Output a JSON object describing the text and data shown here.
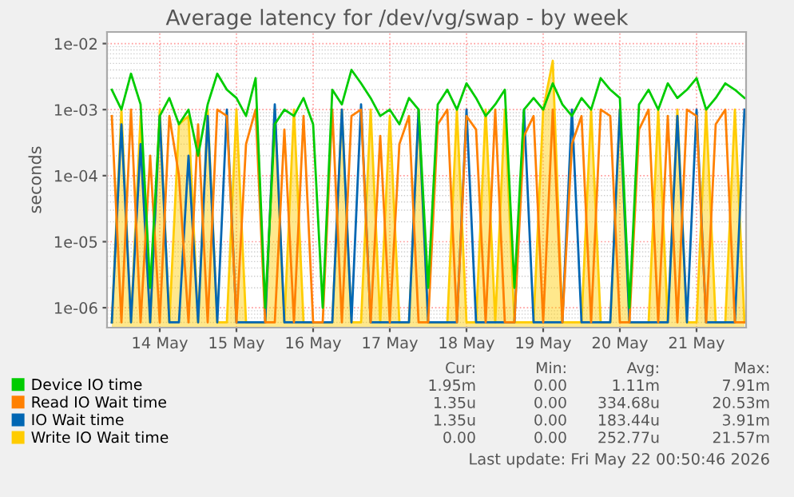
{
  "chart_data": {
    "type": "line",
    "title": "Average latency for /dev/vg/swap - by week",
    "ylabel": "seconds",
    "x": [
      "2026-05-13T09:00",
      "2026-05-13T12:00",
      "2026-05-13T15:00",
      "2026-05-13T18:00",
      "2026-05-13T21:00",
      "2026-05-14T00:00",
      "2026-05-14T03:00",
      "2026-05-14T06:00",
      "2026-05-14T09:00",
      "2026-05-14T12:00",
      "2026-05-14T15:00",
      "2026-05-14T18:00",
      "2026-05-14T21:00",
      "2026-05-15T00:00",
      "2026-05-15T03:00",
      "2026-05-15T06:00",
      "2026-05-15T09:00",
      "2026-05-15T12:00",
      "2026-05-15T15:00",
      "2026-05-15T18:00",
      "2026-05-15T21:00",
      "2026-05-16T00:00",
      "2026-05-16T03:00",
      "2026-05-16T06:00",
      "2026-05-16T09:00",
      "2026-05-16T12:00",
      "2026-05-16T15:00",
      "2026-05-16T18:00",
      "2026-05-16T21:00",
      "2026-05-17T00:00",
      "2026-05-17T03:00",
      "2026-05-17T06:00",
      "2026-05-17T09:00",
      "2026-05-17T12:00",
      "2026-05-17T15:00",
      "2026-05-17T18:00",
      "2026-05-17T21:00",
      "2026-05-18T00:00",
      "2026-05-18T03:00",
      "2026-05-18T06:00",
      "2026-05-18T09:00",
      "2026-05-18T12:00",
      "2026-05-18T15:00",
      "2026-05-18T18:00",
      "2026-05-18T21:00",
      "2026-05-19T00:00",
      "2026-05-19T03:00",
      "2026-05-19T06:00",
      "2026-05-19T09:00",
      "2026-05-19T12:00",
      "2026-05-19T15:00",
      "2026-05-19T18:00",
      "2026-05-19T21:00",
      "2026-05-20T00:00",
      "2026-05-20T03:00",
      "2026-05-20T06:00",
      "2026-05-20T09:00",
      "2026-05-20T12:00",
      "2026-05-20T15:00",
      "2026-05-20T18:00",
      "2026-05-20T21:00",
      "2026-05-21T00:00",
      "2026-05-21T03:00",
      "2026-05-21T06:00",
      "2026-05-21T09:00",
      "2026-05-21T12:00",
      "2026-05-21T15:00"
    ],
    "series": [
      {
        "name": "Write IO Wait time",
        "type": "area",
        "color": "#ffcc00",
        "values": [
          6e-07,
          0.001,
          6e-07,
          0.0008,
          6e-07,
          0.001,
          6e-07,
          0.0006,
          0.0008,
          6e-07,
          0.001,
          6e-07,
          6e-07,
          0.001,
          6e-07,
          6e-07,
          6e-07,
          0.001,
          6e-07,
          0.001,
          6e-07,
          6e-07,
          6e-07,
          6e-07,
          0.001,
          6e-07,
          6e-07,
          0.001,
          6e-07,
          0.0008,
          6e-07,
          6e-07,
          0.001,
          6e-07,
          6e-07,
          6e-07,
          0.001,
          6e-07,
          6e-07,
          0.001,
          6e-07,
          0.001,
          6e-07,
          6e-07,
          6e-07,
          0.001,
          0.0055,
          6e-07,
          6e-07,
          6e-07,
          0.001,
          6e-07,
          6e-07,
          0.001,
          6e-07,
          6e-07,
          6e-07,
          0.001,
          6e-07,
          0.001,
          6e-07,
          6e-07,
          0.001,
          6e-07,
          6e-07,
          0.001,
          6e-07
        ]
      },
      {
        "name": "IO Wait time",
        "color": "#0066b3",
        "values": [
          6e-07,
          0.0006,
          6e-07,
          0.0003,
          6e-07,
          0.0008,
          6e-07,
          6e-07,
          0.0002,
          6e-07,
          0.0008,
          6e-07,
          0.001,
          6e-07,
          6e-07,
          6e-07,
          6e-07,
          0.0012,
          6e-07,
          6e-07,
          6e-07,
          6e-07,
          6e-07,
          6e-07,
          0.001,
          6e-07,
          0.0012,
          6e-07,
          6e-07,
          6e-07,
          6e-07,
          6e-07,
          0.001,
          6e-07,
          6e-07,
          6e-07,
          6e-07,
          0.001,
          6e-07,
          6e-07,
          6e-07,
          6e-07,
          6e-07,
          0.001,
          6e-07,
          6e-07,
          6e-07,
          6e-07,
          0.001,
          6e-07,
          6e-07,
          6e-07,
          6e-07,
          0.001,
          6e-07,
          6e-07,
          6e-07,
          6e-07,
          6e-07,
          0.0008,
          6e-07,
          0.001,
          6e-07,
          6e-07,
          6e-07,
          6e-07,
          0.001
        ]
      },
      {
        "name": "Read IO Wait time",
        "color": "#ff8000",
        "values": [
          0.0008,
          6e-07,
          0.001,
          6e-07,
          0.0002,
          6e-07,
          0.0008,
          0.0001,
          6e-07,
          0.0006,
          6e-07,
          0.001,
          0.0008,
          6e-07,
          0.0003,
          0.001,
          6e-07,
          6e-07,
          0.0005,
          6e-07,
          0.0008,
          6e-07,
          6e-07,
          0.001,
          6e-07,
          0.0008,
          0.001,
          6e-07,
          0.0004,
          6e-07,
          0.0003,
          0.0008,
          6e-07,
          6e-07,
          0.0006,
          0.001,
          6e-07,
          0.0008,
          0.0005,
          6e-07,
          0.001,
          6e-07,
          6e-07,
          0.0004,
          0.0008,
          6e-07,
          0.001,
          6e-07,
          0.0003,
          0.0008,
          6e-07,
          0.001,
          0.0008,
          6e-07,
          6e-07,
          0.0005,
          0.001,
          6e-07,
          0.0008,
          6e-07,
          0.001,
          0.0008,
          6e-07,
          0.0006,
          0.001,
          6e-07,
          6e-07
        ]
      },
      {
        "name": "Device IO time",
        "color": "#00cc00",
        "values": [
          0.002,
          0.001,
          0.0035,
          0.0012,
          2e-06,
          0.0008,
          0.0015,
          0.0006,
          0.001,
          0.0002,
          0.0012,
          0.0035,
          0.002,
          0.0015,
          0.0008,
          0.003,
          1e-06,
          0.0006,
          0.001,
          0.0008,
          0.0015,
          0.0006,
          1e-06,
          0.002,
          0.0012,
          0.004,
          0.0025,
          0.0015,
          0.0008,
          0.001,
          0.0006,
          0.0015,
          0.001,
          2e-06,
          0.0012,
          0.002,
          0.001,
          0.0025,
          0.0015,
          0.0008,
          0.0012,
          0.002,
          2e-06,
          0.001,
          0.0015,
          0.001,
          0.0025,
          0.0012,
          0.0008,
          0.0015,
          0.001,
          0.003,
          0.002,
          0.0015,
          1e-06,
          0.0012,
          0.002,
          0.001,
          0.0025,
          0.0015,
          0.002,
          0.003,
          0.001,
          0.0015,
          0.0025,
          0.002,
          0.0015
        ]
      }
    ],
    "log": "y",
    "ylim": [
      5e-07,
      0.015
    ],
    "yticks": [
      {
        "value": 1e-06,
        "label": "1e-06"
      },
      {
        "value": 1e-05,
        "label": "1e-05"
      },
      {
        "value": 0.0001,
        "label": "1e-04"
      },
      {
        "value": 0.001,
        "label": "1e-03"
      },
      {
        "value": 0.01,
        "label": "1e-02"
      }
    ],
    "xlim": [
      "2026-05-13T07:30",
      "2026-05-21T15:30"
    ],
    "xticks": [
      {
        "value": "2026-05-14",
        "label": "14 May"
      },
      {
        "value": "2026-05-15",
        "label": "15 May"
      },
      {
        "value": "2026-05-16",
        "label": "16 May"
      },
      {
        "value": "2026-05-17",
        "label": "17 May"
      },
      {
        "value": "2026-05-18",
        "label": "18 May"
      },
      {
        "value": "2026-05-19",
        "label": "19 May"
      },
      {
        "value": "2026-05-20",
        "label": "20 May"
      },
      {
        "value": "2026-05-21",
        "label": "21 May"
      }
    ],
    "grid": true,
    "legend": "bottom",
    "annotations": [
      "Cur:",
      "Min:",
      "Avg:",
      "Max:",
      "1.95m",
      "0.00",
      "1.11m",
      "7.91m",
      "1.35u",
      "0.00",
      "334.68u",
      "20.53m",
      "1.35u",
      "0.00",
      "183.44u",
      "3.91m",
      "0.00",
      "0.00",
      "252.77u",
      "21.57m",
      "Last update: Fri May 22 00:50:46 2026"
    ]
  }
}
